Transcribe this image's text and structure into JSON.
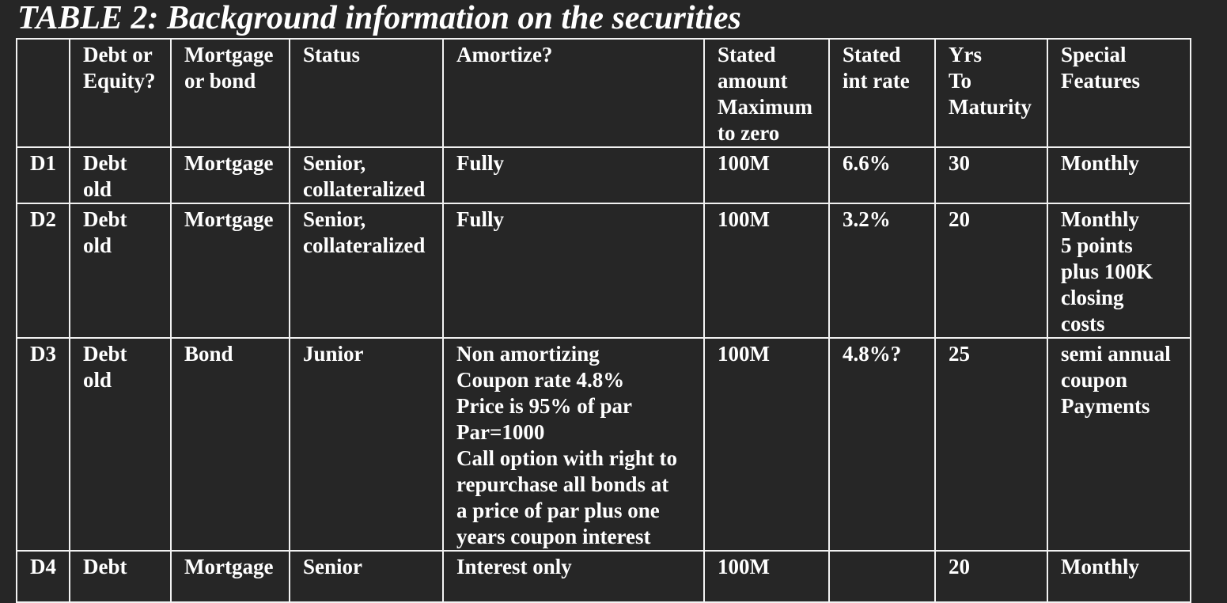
{
  "title": "TABLE 2: Background information on the securities",
  "headers": [
    "",
    "Debt or\nEquity?",
    "Mortgage\nor bond",
    "Status",
    "Amortize?",
    "Stated\namount\nMaximum\nto zero",
    "Stated\nint rate",
    "Yrs\nTo\nMaturity",
    "Special\nFeatures"
  ],
  "rows": [
    {
      "id": "D1",
      "debt_or_equity": "Debt\nold",
      "mortgage_or_bond": "Mortgage",
      "status": "Senior,\ncollateralized",
      "amortize": "Fully",
      "stated_amount": "100M",
      "int_rate": "6.6%",
      "yrs": "30",
      "features": "Monthly"
    },
    {
      "id": "D2",
      "debt_or_equity": "Debt\nold",
      "mortgage_or_bond": "Mortgage",
      "status": "Senior,\ncollateralized",
      "amortize": "Fully",
      "stated_amount": "100M",
      "int_rate": "3.2%",
      "yrs": "20",
      "features": "Monthly\n5 points\nplus 100K\nclosing\ncosts"
    },
    {
      "id": "D3",
      "debt_or_equity": "Debt\nold",
      "mortgage_or_bond": "Bond",
      "status": "Junior",
      "amortize": "Non amortizing\nCoupon rate 4.8%\nPrice is 95% of par\nPar=1000\nCall option with right to\nrepurchase all bonds at\na price of par plus one\nyears coupon interest",
      "stated_amount": "100M",
      "int_rate": "4.8%?",
      "yrs": "25",
      "features": "semi annual\ncoupon\nPayments"
    },
    {
      "id": "D4",
      "debt_or_equity": "Debt",
      "mortgage_or_bond": "Mortgage",
      "status": "Senior",
      "amortize": "Interest only",
      "stated_amount": "100M",
      "int_rate": "",
      "yrs": "20",
      "features": "Monthly"
    }
  ]
}
